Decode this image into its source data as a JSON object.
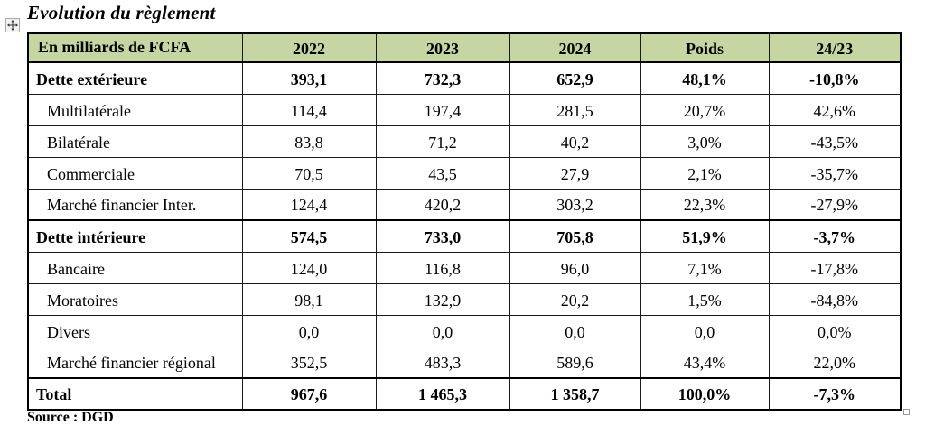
{
  "title": "Evolution du règlement",
  "source": "Source : DGD",
  "accent_color": "#c6d6a2",
  "icons": {
    "move_handle": "table-move-handle-icon",
    "resize_handle": "table-resize-handle"
  },
  "table": {
    "headers": [
      "En milliards de FCFA",
      "2022",
      "2023",
      "2024",
      "Poids",
      "24/23"
    ],
    "rows": [
      {
        "label": "Dette extérieure",
        "style": "section",
        "values": [
          "393,1",
          "732,3",
          "652,9",
          "48,1%",
          "-10,8%"
        ]
      },
      {
        "label": "Multilatérale",
        "style": "sub",
        "values": [
          "114,4",
          "197,4",
          "281,5",
          "20,7%",
          "42,6%"
        ]
      },
      {
        "label": "Bilatérale",
        "style": "sub",
        "values": [
          "83,8",
          "71,2",
          "40,2",
          "3,0%",
          "-43,5%"
        ]
      },
      {
        "label": "Commerciale",
        "style": "sub",
        "values": [
          "70,5",
          "43,5",
          "27,9",
          "2,1%",
          "-35,7%"
        ]
      },
      {
        "label": "Marché financier Inter.",
        "style": "sub",
        "values": [
          "124,4",
          "420,2",
          "303,2",
          "22,3%",
          "-27,9%"
        ]
      },
      {
        "label": "Dette intérieure",
        "style": "section",
        "values": [
          "574,5",
          "733,0",
          "705,8",
          "51,9%",
          "-3,7%"
        ]
      },
      {
        "label": "Bancaire",
        "style": "sub",
        "values": [
          "124,0",
          "116,8",
          "96,0",
          "7,1%",
          "-17,8%"
        ]
      },
      {
        "label": "Moratoires",
        "style": "sub",
        "values": [
          "98,1",
          "132,9",
          "20,2",
          "1,5%",
          "-84,8%"
        ]
      },
      {
        "label": "Divers",
        "style": "sub",
        "values": [
          "0,0",
          "0,0",
          "0,0",
          "0,0",
          "0,0%"
        ]
      },
      {
        "label": "Marché financier régional",
        "style": "sub",
        "values": [
          "352,5",
          "483,3",
          "589,6",
          "43,4%",
          "22,0%"
        ]
      },
      {
        "label": "Total",
        "style": "section",
        "values": [
          "967,6",
          "1 465,3",
          "1 358,7",
          "100,0%",
          "-7,3%"
        ]
      }
    ]
  }
}
